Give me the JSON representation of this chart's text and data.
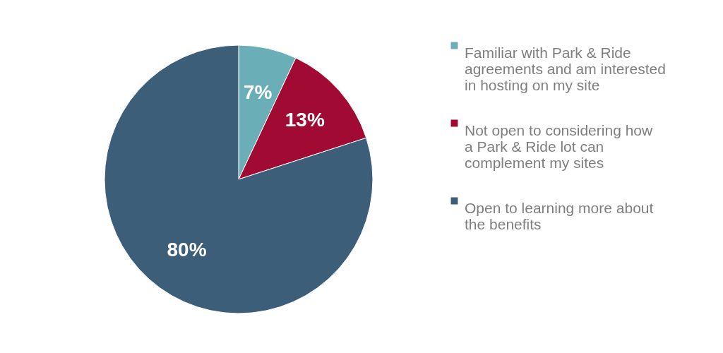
{
  "chart_data": {
    "type": "pie",
    "categories": [
      "Familiar with Park & Ride agreements and am interested in hosting on my site",
      "Not open to considering how a Park & Ride lot can complement my sites",
      "Open to learning more about the benefits"
    ],
    "values": [
      7,
      13,
      80
    ],
    "colors": [
      "#6aafb8",
      "#a10a33",
      "#3c5e78"
    ],
    "value_labels": [
      "7%",
      "13%",
      "80%"
    ],
    "legend": "right"
  }
}
